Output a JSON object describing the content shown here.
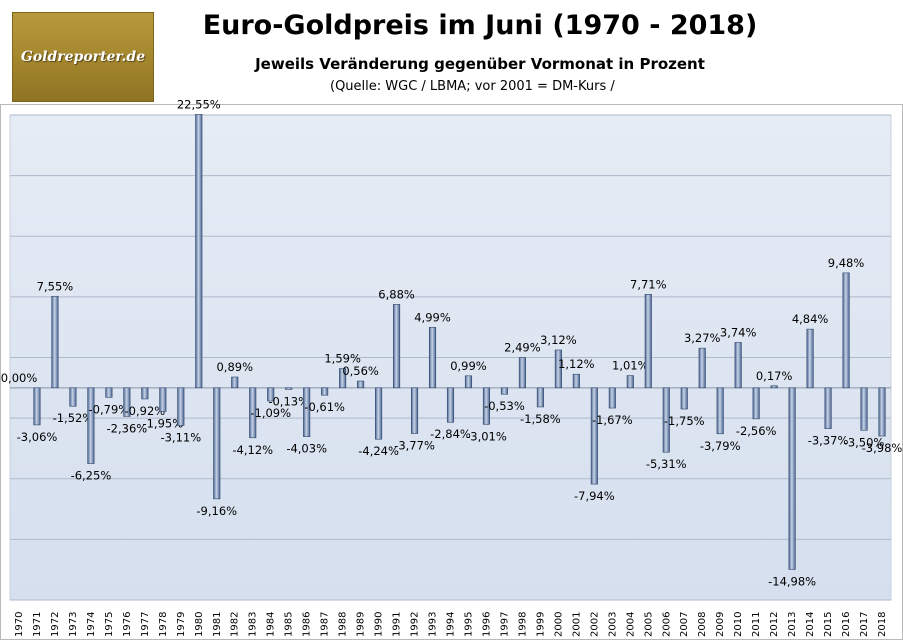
{
  "logo": {
    "text": "Goldreporter.de"
  },
  "header": {
    "title": "Euro-Goldpreis im Juni (1970 - 2018)",
    "subtitle": "Jeweils Veränderung gegenüber Vormonat in Prozent",
    "source": "(Quelle: WGC / LBMA; vor 2001 = DM-Kurs /"
  },
  "colors": {
    "bar_light": "#c7d3e6",
    "bar_dark": "#4a6592",
    "bar_stroke": "#33476b",
    "plot_top": "#e6ecf5",
    "plot_bottom": "#d5dfee",
    "grid": "#aeb9cc"
  },
  "chart_data": {
    "type": "bar",
    "title": "Euro-Goldpreis im Juni (1970 - 2018)",
    "xlabel": "",
    "ylabel": "",
    "ylim": [
      -17.5,
      22.5
    ],
    "grid_step": 5,
    "categories": [
      "1970",
      "1971",
      "1972",
      "1973",
      "1974",
      "1975",
      "1976",
      "1977",
      "1978",
      "1979",
      "1980",
      "1981",
      "1982",
      "1983",
      "1984",
      "1985",
      "1986",
      "1987",
      "1988",
      "1989",
      "1990",
      "1991",
      "1992",
      "1993",
      "1994",
      "1995",
      "1996",
      "1997",
      "1998",
      "1999",
      "2000",
      "2001",
      "2002",
      "2003",
      "2004",
      "2005",
      "2006",
      "2007",
      "2008",
      "2009",
      "2010",
      "2011",
      "2012",
      "2013",
      "2014",
      "2015",
      "2016",
      "2017",
      "2018"
    ],
    "values": [
      0.0,
      -3.06,
      7.55,
      -1.52,
      -6.25,
      -0.79,
      -2.36,
      -0.92,
      -1.95,
      -3.11,
      22.55,
      -9.16,
      0.89,
      -4.12,
      -1.09,
      -0.13,
      -4.03,
      -0.61,
      1.59,
      0.56,
      -4.24,
      6.88,
      -3.77,
      4.99,
      -2.84,
      0.99,
      -3.01,
      -0.53,
      2.49,
      -1.58,
      3.12,
      1.12,
      -7.94,
      -1.67,
      1.01,
      7.71,
      -5.31,
      -1.75,
      3.27,
      -3.79,
      3.74,
      -2.56,
      0.17,
      -14.98,
      4.84,
      -3.37,
      9.48,
      -3.5,
      -3.98
    ],
    "labels": [
      "0,00%",
      "-3,06%",
      "7,55%",
      "-1,52%",
      "-6,25%",
      "-0,79%",
      "-2,36%",
      "-0,92%",
      "-1,95%",
      "-3,11%",
      "22,55%",
      "-9,16%",
      "0,89%",
      "-4,12%",
      "-1,09%",
      "-0,13%",
      "-4,03%",
      "-0,61%",
      "1,59%",
      "0,56%",
      "-4,24%",
      "6,88%",
      "-3,77%",
      "4,99%",
      "-2,84%",
      "0,99%",
      "-3,01%",
      "-0,53%",
      "2,49%",
      "-1,58%",
      "3,12%",
      "1,12%",
      "-7,94%",
      "-1,67%",
      "1,01%",
      "7,71%",
      "-5,31%",
      "-1,75%",
      "3,27%",
      "-3,79%",
      "3,74%",
      "-2,56%",
      "0,17%",
      "-14,98%",
      "4,84%",
      "-3,37%",
      "9,48%",
      "-3,50%",
      "-3,98%"
    ]
  }
}
